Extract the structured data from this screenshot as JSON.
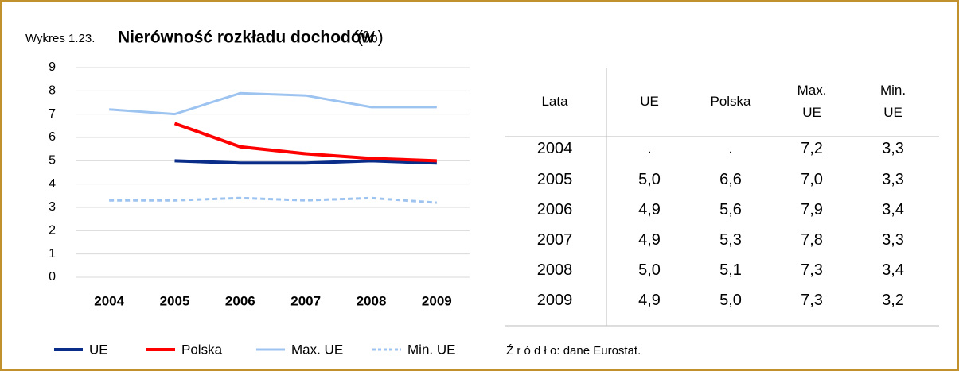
{
  "chart_data": {
    "type": "line",
    "title_prefix": "Wykres 1.23.",
    "title": "Nierówność rozkładu dochodów",
    "title_unit": "(%)",
    "categories": [
      "2004",
      "2005",
      "2006",
      "2007",
      "2008",
      "2009"
    ],
    "series": [
      {
        "name": "UE",
        "color": "#0b2d8a",
        "dash": false,
        "values": [
          null,
          5.0,
          4.9,
          4.9,
          5.0,
          4.9
        ]
      },
      {
        "name": "Polska",
        "color": "#ff0000",
        "dash": false,
        "values": [
          null,
          6.6,
          5.6,
          5.3,
          5.1,
          5.0
        ]
      },
      {
        "name": "Max. UE",
        "color": "#9dc3f0",
        "dash": false,
        "values": [
          7.2,
          7.0,
          7.9,
          7.8,
          7.3,
          7.3
        ]
      },
      {
        "name": "Min. UE",
        "color": "#9dc3f0",
        "dash": true,
        "values": [
          3.3,
          3.3,
          3.4,
          3.3,
          3.4,
          3.2
        ]
      }
    ],
    "ylim": [
      0,
      9
    ],
    "yticks": [
      0,
      1,
      2,
      3,
      4,
      5,
      6,
      7,
      8,
      9
    ],
    "grid": true,
    "legend": "bottom"
  },
  "table": {
    "header": [
      "Lata",
      "UE",
      "Polska",
      "Max. UE",
      "Min. UE"
    ],
    "rows": [
      [
        "2004",
        ".",
        ".",
        "7,2",
        "3,3"
      ],
      [
        "2005",
        "5,0",
        "6,6",
        "7,0",
        "3,3"
      ],
      [
        "2006",
        "4,9",
        "5,6",
        "7,9",
        "3,4"
      ],
      [
        "2007",
        "4,9",
        "5,3",
        "7,8",
        "3,3"
      ],
      [
        "2008",
        "5,0",
        "5,1",
        "7,3",
        "3,4"
      ],
      [
        "2009",
        "4,9",
        "5,0",
        "7,3",
        "3,2"
      ]
    ]
  },
  "source": "Ź r ó d ł o: dane Eurostat."
}
